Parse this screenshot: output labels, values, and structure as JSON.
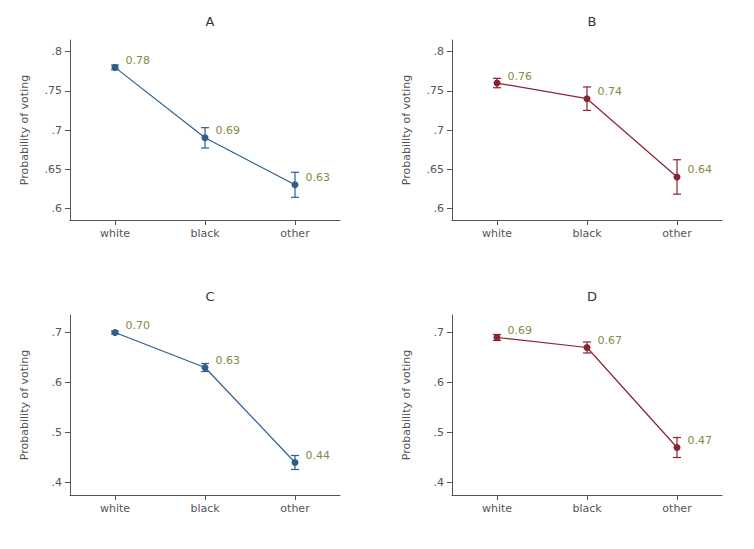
{
  "chart_data": [
    {
      "type": "line",
      "title": "A",
      "categories": [
        "white",
        "black",
        "other"
      ],
      "ylabel": "Probability of voting",
      "color": "#2e5f8c",
      "marker": "circle",
      "values": [
        0.78,
        0.69,
        0.63
      ],
      "value_labels": [
        "0.78",
        "0.69",
        "0.63"
      ],
      "errors": [
        0.003,
        0.013,
        0.016
      ],
      "ylim": [
        0.585,
        0.815
      ],
      "yticks": [
        {
          "value": 0.6,
          "label": ".6"
        },
        {
          "value": 0.65,
          "label": ".65"
        },
        {
          "value": 0.7,
          "label": ".7"
        },
        {
          "value": 0.75,
          "label": ".75"
        },
        {
          "value": 0.8,
          "label": ".8"
        }
      ],
      "data_labels": true,
      "grid": false
    },
    {
      "type": "line",
      "title": "B",
      "categories": [
        "white",
        "black",
        "other"
      ],
      "ylabel": "Probability of voting",
      "color": "#8b2332",
      "marker": "circle",
      "values": [
        0.76,
        0.74,
        0.64
      ],
      "value_labels": [
        "0.76",
        "0.74",
        "0.64"
      ],
      "errors": [
        0.006,
        0.015,
        0.022
      ],
      "ylim": [
        0.585,
        0.815
      ],
      "yticks": [
        {
          "value": 0.6,
          "label": ".6"
        },
        {
          "value": 0.65,
          "label": ".65"
        },
        {
          "value": 0.7,
          "label": ".7"
        },
        {
          "value": 0.75,
          "label": ".75"
        },
        {
          "value": 0.8,
          "label": ".8"
        }
      ],
      "data_labels": true,
      "grid": false
    },
    {
      "type": "line",
      "title": "C",
      "categories": [
        "white",
        "black",
        "other"
      ],
      "ylabel": "Probability of voting",
      "color": "#2e5f8c",
      "marker": "circle",
      "values": [
        0.7,
        0.63,
        0.44
      ],
      "value_labels": [
        "0.70",
        "0.63",
        "0.44"
      ],
      "errors": [
        0.003,
        0.008,
        0.014
      ],
      "ylim": [
        0.375,
        0.735
      ],
      "yticks": [
        {
          "value": 0.4,
          "label": ".4"
        },
        {
          "value": 0.5,
          "label": ".5"
        },
        {
          "value": 0.6,
          "label": ".6"
        },
        {
          "value": 0.7,
          "label": ".7"
        }
      ],
      "data_labels": true,
      "grid": false
    },
    {
      "type": "line",
      "title": "D",
      "categories": [
        "white",
        "black",
        "other"
      ],
      "ylabel": "Probability of voting",
      "color": "#8b2332",
      "marker": "circle",
      "values": [
        0.69,
        0.67,
        0.47
      ],
      "value_labels": [
        "0.69",
        "0.67",
        "0.47"
      ],
      "errors": [
        0.006,
        0.011,
        0.02
      ],
      "ylim": [
        0.375,
        0.735
      ],
      "yticks": [
        {
          "value": 0.4,
          "label": ".4"
        },
        {
          "value": 0.5,
          "label": ".5"
        },
        {
          "value": 0.6,
          "label": ".6"
        },
        {
          "value": 0.7,
          "label": ".7"
        }
      ],
      "data_labels": true,
      "grid": false
    }
  ]
}
